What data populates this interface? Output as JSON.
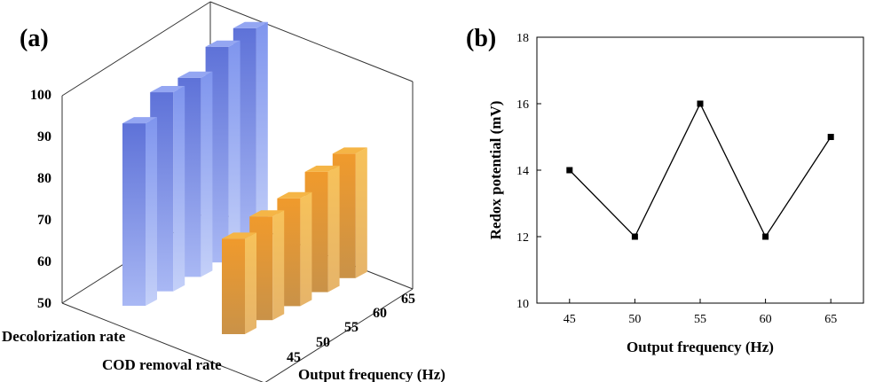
{
  "panels": {
    "a_label": "(a)",
    "b_label": "(b)"
  },
  "chart_data": [
    {
      "type": "bar",
      "panel": "(a)",
      "xlabel": "Output frequency  (Hz)",
      "categories": [
        "45",
        "50",
        "55",
        "60",
        "65"
      ],
      "series_axis_labels": [
        "Decolorization rate",
        "COD removal rate"
      ],
      "z_ticks": [
        "50",
        "60",
        "70",
        "80",
        "90",
        "100"
      ],
      "zlim": [
        50,
        100
      ],
      "series": [
        {
          "name": "Decolorization rate",
          "values": [
            94,
            98,
            98,
            102,
            103
          ],
          "color": "#6f86e3"
        },
        {
          "name": "COD removal rate",
          "values": [
            73,
            75,
            76,
            79,
            80
          ],
          "color": "#f0a640"
        }
      ]
    },
    {
      "type": "line",
      "panel": "(b)",
      "xlabel": "Output frequency  (Hz)",
      "ylabel": "Redox potential (mV)",
      "x": [
        45,
        50,
        55,
        60,
        65
      ],
      "y": [
        14,
        12,
        16,
        12,
        15
      ],
      "x_ticks": [
        "45",
        "50",
        "55",
        "60",
        "65"
      ],
      "y_ticks": [
        "10",
        "12",
        "14",
        "16",
        "18"
      ],
      "xlim": [
        42.5,
        67.5
      ],
      "ylim": [
        10,
        18
      ],
      "marker": "square",
      "color": "#000000"
    }
  ]
}
